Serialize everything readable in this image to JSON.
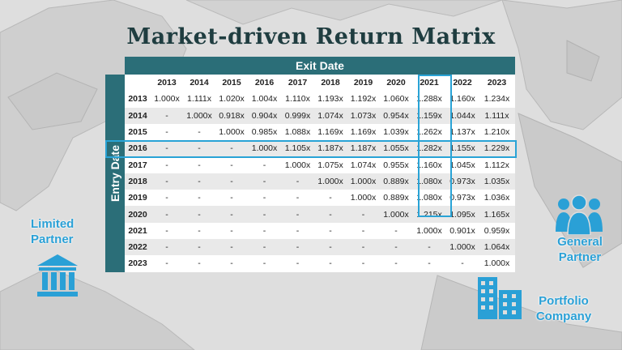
{
  "title": "Market-driven Return Matrix",
  "exit_header": "Exit Date",
  "entry_header": "Entry Date",
  "columns": [
    "2013",
    "2014",
    "2015",
    "2016",
    "2017",
    "2018",
    "2019",
    "2020",
    "2021",
    "2022",
    "2023"
  ],
  "rows": [
    {
      "year": "2013",
      "cells": [
        "1.000x",
        "1.111x",
        "1.020x",
        "1.004x",
        "1.110x",
        "1.193x",
        "1.192x",
        "1.060x",
        "1.288x",
        "1.160x",
        "1.234x"
      ]
    },
    {
      "year": "2014",
      "cells": [
        "-",
        "1.000x",
        "0.918x",
        "0.904x",
        "0.999x",
        "1.074x",
        "1.073x",
        "0.954x",
        "1.159x",
        "1.044x",
        "1.111x"
      ]
    },
    {
      "year": "2015",
      "cells": [
        "-",
        "-",
        "1.000x",
        "0.985x",
        "1.088x",
        "1.169x",
        "1.169x",
        "1.039x",
        "1.262x",
        "1.137x",
        "1.210x"
      ]
    },
    {
      "year": "2016",
      "cells": [
        "-",
        "-",
        "-",
        "1.000x",
        "1.105x",
        "1.187x",
        "1.187x",
        "1.055x",
        "1.282x",
        "1.155x",
        "1.229x"
      ]
    },
    {
      "year": "2017",
      "cells": [
        "-",
        "-",
        "-",
        "-",
        "1.000x",
        "1.075x",
        "1.074x",
        "0.955x",
        "1.160x",
        "1.045x",
        "1.112x"
      ]
    },
    {
      "year": "2018",
      "cells": [
        "-",
        "-",
        "-",
        "-",
        "-",
        "1.000x",
        "1.000x",
        "0.889x",
        "1.080x",
        "0.973x",
        "1.035x"
      ]
    },
    {
      "year": "2019",
      "cells": [
        "-",
        "-",
        "-",
        "-",
        "-",
        "-",
        "1.000x",
        "0.889x",
        "1.080x",
        "0.973x",
        "1.036x"
      ]
    },
    {
      "year": "2020",
      "cells": [
        "-",
        "-",
        "-",
        "-",
        "-",
        "-",
        "-",
        "1.000x",
        "1.215x",
        "1.095x",
        "1.165x"
      ]
    },
    {
      "year": "2021",
      "cells": [
        "-",
        "-",
        "-",
        "-",
        "-",
        "-",
        "-",
        "-",
        "1.000x",
        "0.901x",
        "0.959x"
      ]
    },
    {
      "year": "2022",
      "cells": [
        "-",
        "-",
        "-",
        "-",
        "-",
        "-",
        "-",
        "-",
        "-",
        "1.000x",
        "1.064x"
      ]
    },
    {
      "year": "2023",
      "cells": [
        "-",
        "-",
        "-",
        "-",
        "-",
        "-",
        "-",
        "-",
        "-",
        "-",
        "1.000x"
      ]
    }
  ],
  "highlight": {
    "row": "2016",
    "column": "2021"
  },
  "labels": {
    "limited_partner": [
      "Limited",
      "Partner"
    ],
    "general_partner": [
      "General",
      "Partner"
    ],
    "portfolio_company": [
      "Portfolio",
      "Company"
    ]
  },
  "icons": {
    "limited_partner": "bank-building-icon",
    "general_partner": "people-group-icon",
    "portfolio_company": "office-buildings-icon"
  },
  "colors": {
    "header": "#2b6e78",
    "highlight": "#29a3d6",
    "title": "#1f3d40",
    "label": "#2aa0d6"
  }
}
